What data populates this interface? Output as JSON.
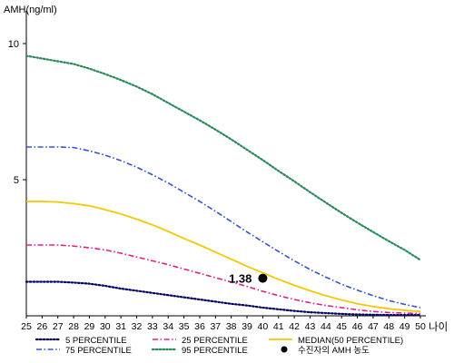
{
  "chart_data": {
    "type": "line",
    "ylabel": "AMH(ng/ml)",
    "xlabel": "나이",
    "ylim": [
      0,
      11
    ],
    "xlim": [
      25,
      50
    ],
    "y_ticks": [
      5,
      10
    ],
    "x": [
      25,
      26,
      27,
      28,
      29,
      30,
      31,
      32,
      33,
      34,
      35,
      36,
      37,
      38,
      39,
      40,
      41,
      42,
      43,
      44,
      45,
      46,
      47,
      48,
      49,
      50
    ],
    "x_tick_labels": [
      "25",
      "26",
      "27",
      "28",
      "29",
      "30",
      "31",
      "32",
      "33",
      "34",
      "35",
      "36",
      "37",
      "38",
      "39",
      "40",
      "41",
      "42",
      "43",
      "44",
      "45",
      "46",
      "47",
      "48",
      "49",
      "50"
    ],
    "grid": false,
    "legend_position": "bottom",
    "series": [
      {
        "name": "5 PERCENTILE",
        "color": "#000066",
        "dash": "dotted",
        "values": [
          1.25,
          1.25,
          1.25,
          1.22,
          1.18,
          1.1,
          1.0,
          0.92,
          0.84,
          0.76,
          0.68,
          0.6,
          0.52,
          0.44,
          0.38,
          0.3,
          0.24,
          0.18,
          0.13,
          0.1,
          0.07,
          0.05,
          0.04,
          0.03,
          0.03,
          0.03
        ]
      },
      {
        "name": "25 PERCENTILE",
        "color": "#e0208a",
        "dash": "dashdot",
        "values": [
          2.6,
          2.6,
          2.6,
          2.56,
          2.5,
          2.42,
          2.3,
          2.16,
          2.02,
          1.88,
          1.72,
          1.56,
          1.4,
          1.24,
          1.08,
          0.9,
          0.74,
          0.6,
          0.48,
          0.38,
          0.3,
          0.22,
          0.16,
          0.12,
          0.1,
          0.08
        ]
      },
      {
        "name": "MEDIAN(50 PERCENTILE)",
        "color": "#f5c800",
        "dash": "solid",
        "values": [
          4.2,
          4.2,
          4.18,
          4.12,
          4.04,
          3.9,
          3.74,
          3.55,
          3.34,
          3.1,
          2.84,
          2.6,
          2.34,
          2.08,
          1.82,
          1.58,
          1.34,
          1.12,
          0.92,
          0.74,
          0.58,
          0.44,
          0.34,
          0.26,
          0.2,
          0.16
        ]
      },
      {
        "name": "75 PERCENTILE",
        "color": "#3355cc",
        "dash": "dashdot",
        "values": [
          6.2,
          6.2,
          6.2,
          6.18,
          6.06,
          5.9,
          5.7,
          5.46,
          5.18,
          4.88,
          4.54,
          4.2,
          3.84,
          3.46,
          3.08,
          2.72,
          2.36,
          2.02,
          1.7,
          1.42,
          1.16,
          0.94,
          0.74,
          0.56,
          0.42,
          0.3
        ]
      },
      {
        "name": "95 PERCENTILE",
        "color": "#2a8a5a",
        "dash": "dotted",
        "values": [
          9.55,
          9.45,
          9.35,
          9.25,
          9.08,
          8.88,
          8.66,
          8.42,
          8.14,
          7.82,
          7.5,
          7.18,
          6.84,
          6.48,
          6.1,
          5.72,
          5.32,
          4.94,
          4.54,
          4.16,
          3.78,
          3.42,
          3.08,
          2.74,
          2.42,
          2.05
        ]
      }
    ],
    "marker": {
      "name": "수진자의 AMH 농도",
      "x": 40,
      "y": 1.38,
      "label": "1.38",
      "color": "#000000"
    }
  }
}
